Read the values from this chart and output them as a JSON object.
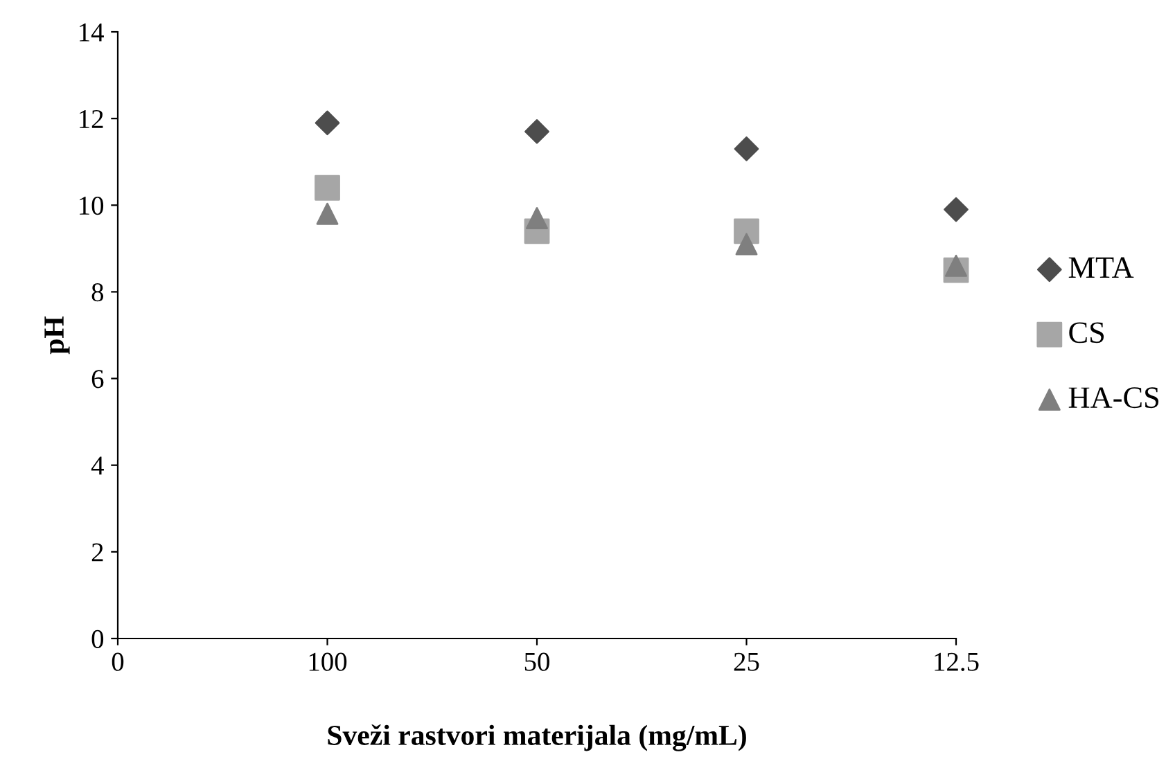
{
  "chart_data": {
    "type": "scatter",
    "xlabel": "Sveži rastvori materijala (mg/mL)",
    "ylabel": "pH",
    "categories": [
      "0",
      "100",
      "50",
      "25",
      "12.5"
    ],
    "series": [
      {
        "name": "MTA",
        "color": "#4d4d4d",
        "marker": "diamond",
        "values": [
          null,
          11.9,
          11.7,
          11.3,
          9.9
        ]
      },
      {
        "name": "CS",
        "color": "#a6a6a6",
        "marker": "square",
        "values": [
          null,
          10.4,
          9.4,
          9.4,
          8.5
        ]
      },
      {
        "name": "HA-CS",
        "color": "#7f7f7f",
        "marker": "triangle",
        "values": [
          null,
          9.8,
          9.7,
          9.1,
          8.6
        ]
      }
    ],
    "ylim": [
      0,
      14
    ],
    "yticks": [
      0,
      2,
      4,
      6,
      8,
      10,
      12,
      14
    ],
    "grid": false,
    "legend": "right"
  }
}
